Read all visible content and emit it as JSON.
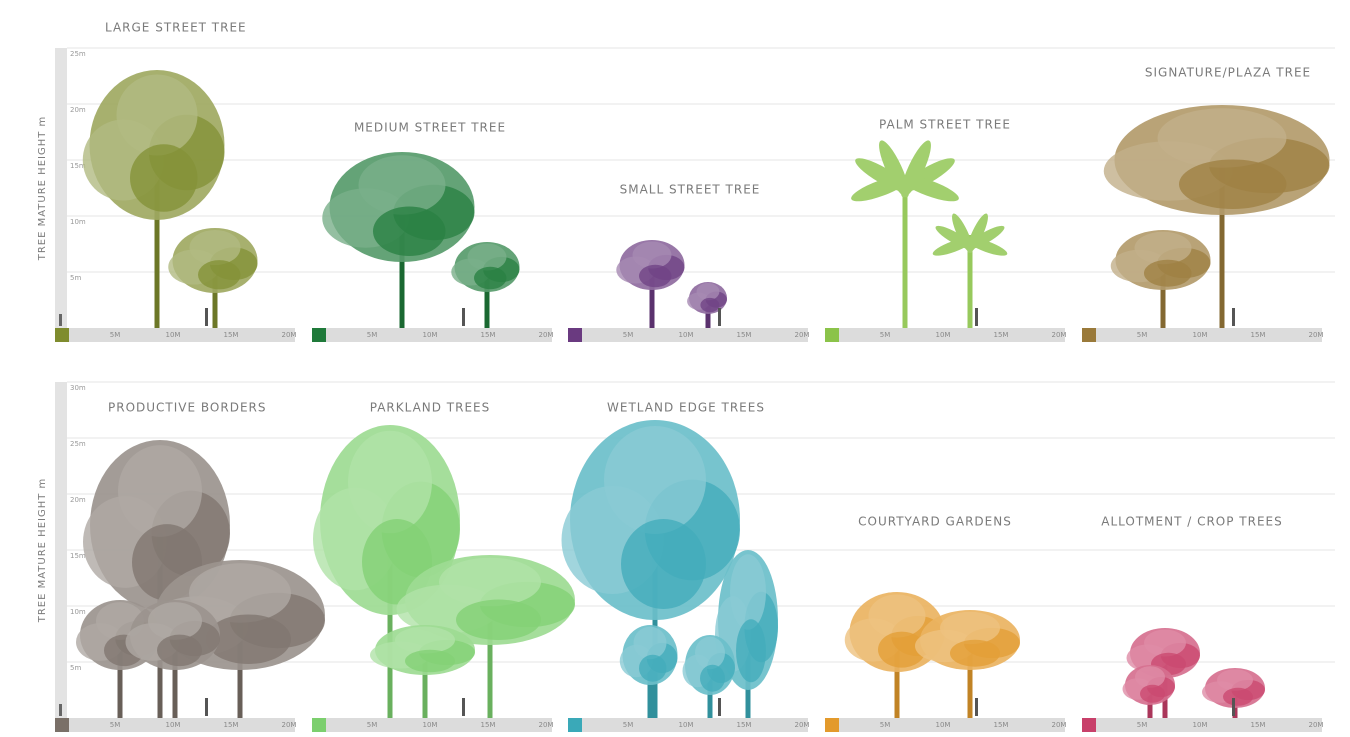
{
  "rows": [
    {
      "axis_label": "TREE MATURE HEIGHT m",
      "ticks": [
        "25m",
        "20m",
        "15m",
        "10m",
        "5m"
      ],
      "panels": [
        {
          "title": "LARGE STREET TREE",
          "color": "#7f8c2e"
        },
        {
          "title": "MEDIUM STREET TREE",
          "color": "#1f7a3a"
        },
        {
          "title": "SMALL STREET TREE",
          "color": "#6a3a80"
        },
        {
          "title": "PALM STREET TREE",
          "color": "#8bc34a"
        },
        {
          "title": "SIGNATURE/PLAZA TREE",
          "color": "#9a7a3a"
        }
      ]
    },
    {
      "axis_label": "TREE MATURE HEIGHT m",
      "ticks": [
        "30m",
        "25m",
        "20m",
        "15m",
        "10m",
        "5m"
      ],
      "panels": [
        {
          "title": "PRODUCTIVE BORDERS",
          "color": "#7a7068"
        },
        {
          "title": "PARKLAND TREES",
          "color": "#7ccf6e"
        },
        {
          "title": "WETLAND EDGE TREES",
          "color": "#3aa9b8"
        },
        {
          "title": "COURTYARD GARDENS",
          "color": "#e39a2c"
        },
        {
          "title": "ALLOTMENT / CROP TREES",
          "color": "#c8406a"
        }
      ]
    }
  ],
  "scale_labels": [
    "5M",
    "10M",
    "15M",
    "20M"
  ]
}
